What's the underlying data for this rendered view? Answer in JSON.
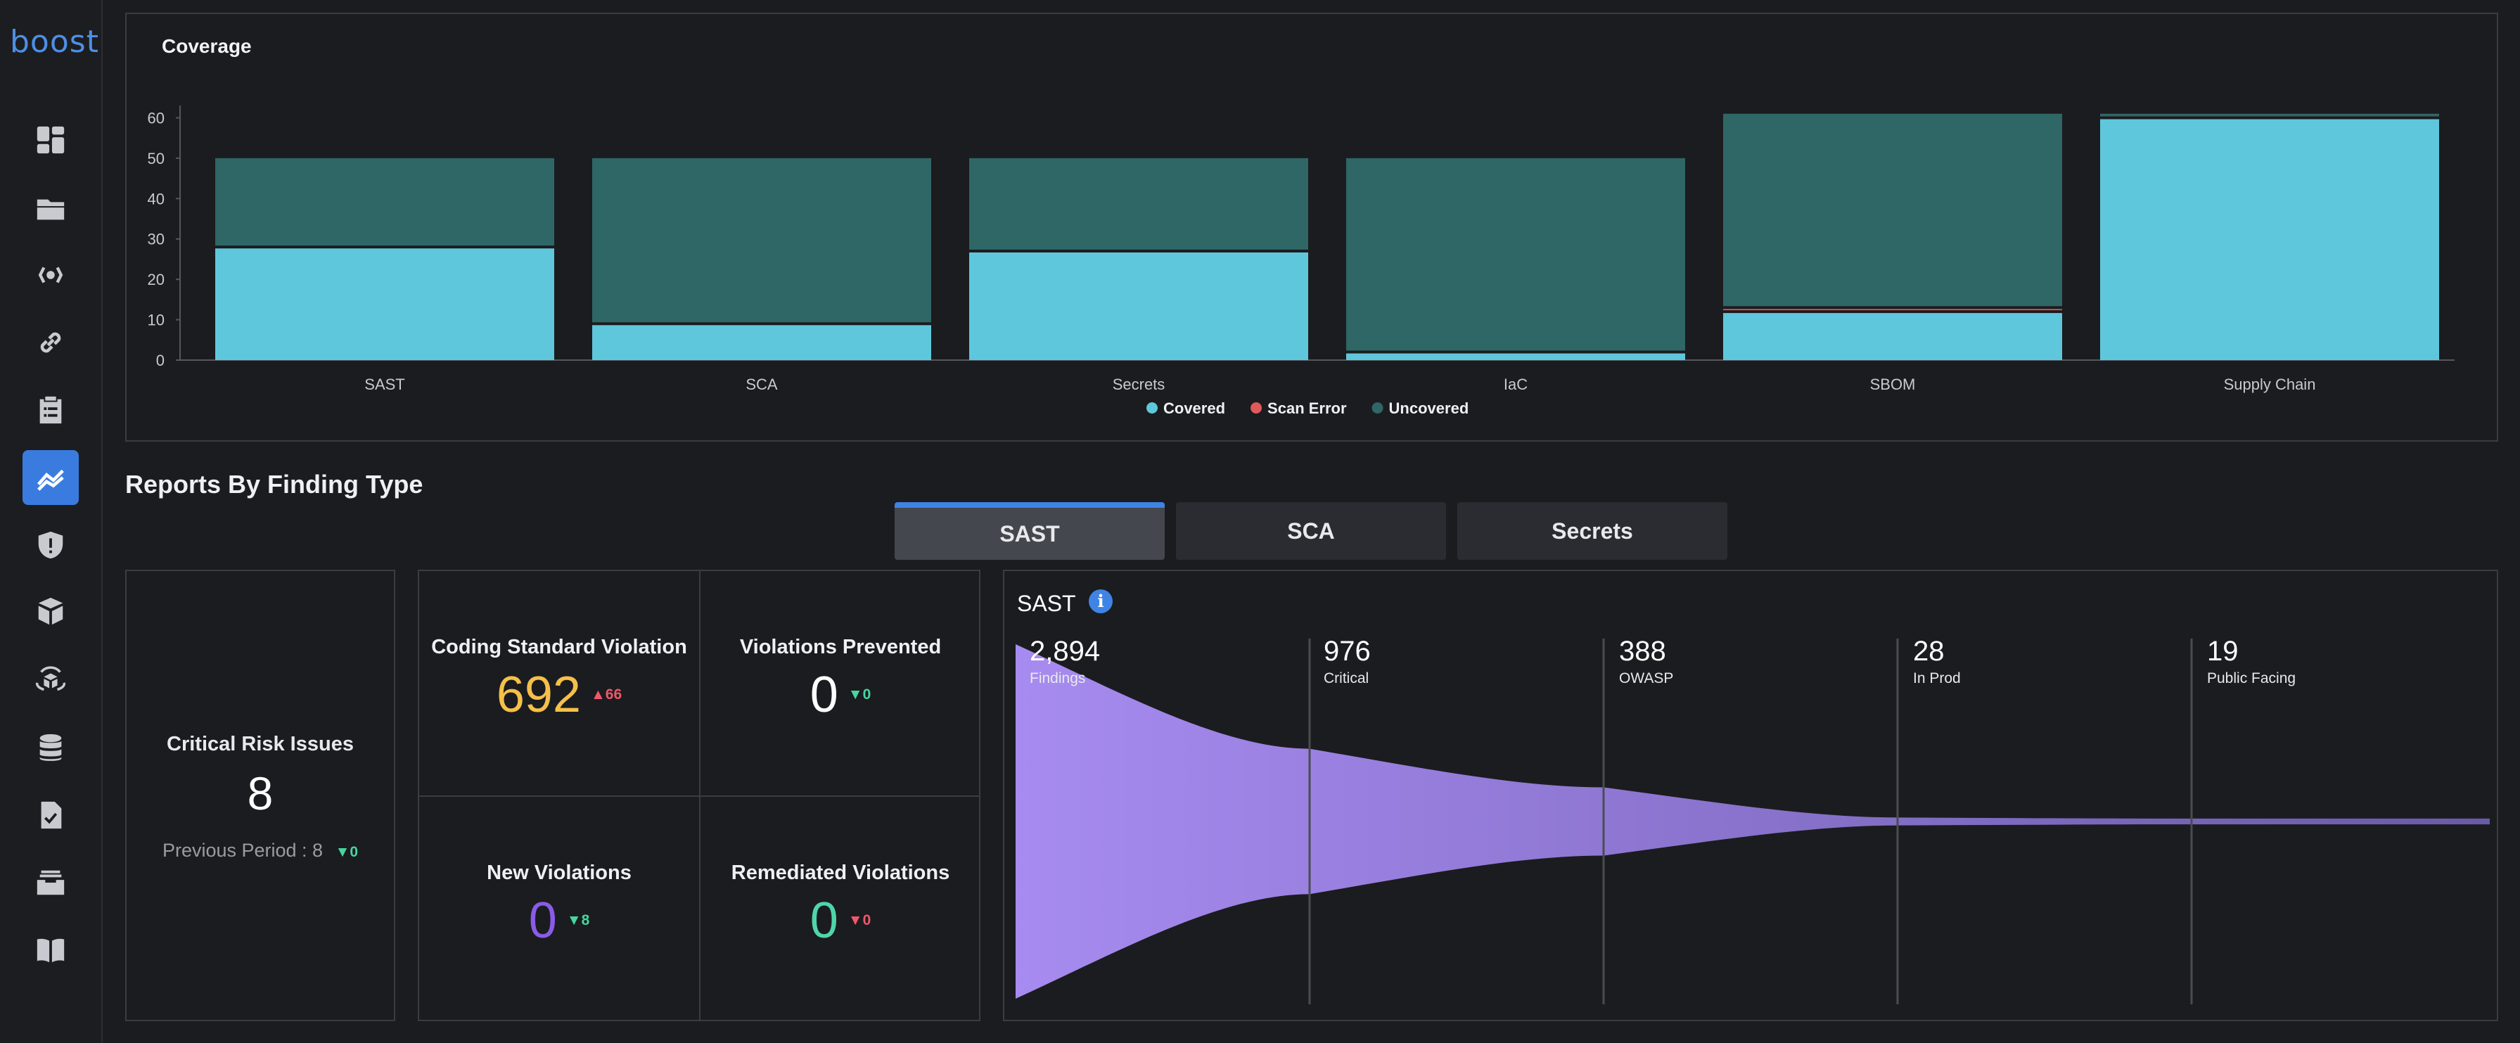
{
  "app": {
    "logo": "boost"
  },
  "sidebar": {
    "items": [
      {
        "icon": "dashboard-icon",
        "active": false
      },
      {
        "icon": "folder-icon",
        "active": false
      },
      {
        "icon": "broadcast-icon",
        "active": false
      },
      {
        "icon": "link-icon",
        "active": false
      },
      {
        "icon": "clipboard-icon",
        "active": false
      },
      {
        "icon": "insights-chart-icon",
        "active": true
      },
      {
        "icon": "shield-alert-icon",
        "active": false
      },
      {
        "icon": "package-icon",
        "active": false
      },
      {
        "icon": "cube-orbit-icon",
        "active": false
      },
      {
        "icon": "database-icon",
        "active": false
      },
      {
        "icon": "document-check-icon",
        "active": false
      },
      {
        "icon": "archive-tray-icon",
        "active": false
      },
      {
        "icon": "book-icon",
        "active": false
      }
    ]
  },
  "coverage": {
    "title": "Coverage",
    "chart_data": {
      "type": "bar",
      "stacked": true,
      "title": "Coverage",
      "categories": [
        "SAST",
        "SCA",
        "Secrets",
        "IaC",
        "SBOM",
        "Supply Chain"
      ],
      "yticks": [
        "0",
        "10",
        "20",
        "30",
        "40",
        "50",
        "60"
      ],
      "ylim": [
        0,
        62
      ],
      "series": [
        {
          "name": "Covered",
          "color": "#5fc7dc",
          "values": [
            28,
            9,
            27,
            2,
            12,
            60
          ]
        },
        {
          "name": "Scan Error",
          "color": "#e05a5a",
          "values": [
            0,
            0,
            0,
            0,
            1,
            0
          ]
        },
        {
          "name": "Uncovered",
          "color": "#2f6666",
          "values": [
            22,
            41,
            23,
            48,
            48,
            1
          ]
        }
      ],
      "legend": "bottom-center",
      "grid": false
    }
  },
  "reports": {
    "section_title": "Reports By Finding Type",
    "tabs": [
      {
        "label": "SAST",
        "active": true
      },
      {
        "label": "SCA",
        "active": false
      },
      {
        "label": "Secrets",
        "active": false
      }
    ],
    "critical": {
      "label": "Critical Risk Issues",
      "value": "8",
      "previous_label": "Previous Period : 8",
      "previous_delta": "0"
    },
    "metrics": [
      {
        "label": "Coding Standard Violation",
        "value": "692",
        "value_color": "#f5c04a",
        "delta": "66",
        "delta_dir": "up",
        "delta_color": "#f0576a"
      },
      {
        "label": "Violations Prevented",
        "value": "0",
        "value_color": "#ffffff",
        "delta": "0",
        "delta_dir": "down",
        "delta_color": "#46d6a0"
      },
      {
        "label": "New Violations",
        "value": "0",
        "value_color": "#8a5ce6",
        "delta": "8",
        "delta_dir": "down",
        "delta_color": "#46d6a0"
      },
      {
        "label": "Remediated Violations",
        "value": "0",
        "value_color": "#4fd6a8",
        "delta": "0",
        "delta_dir": "down",
        "delta_color": "#f0576a"
      }
    ],
    "funnel": {
      "title": "SAST",
      "stages": [
        {
          "value": "2,894",
          "label": "Findings",
          "count": 2894
        },
        {
          "value": "976",
          "label": "Critical",
          "count": 976
        },
        {
          "value": "388",
          "label": "OWASP",
          "count": 388
        },
        {
          "value": "28",
          "label": "In Prod",
          "count": 28
        },
        {
          "value": "19",
          "label": "Public Facing",
          "count": 19
        }
      ],
      "color_start": "#a78bf0",
      "color_end": "#6a5aa8"
    }
  }
}
